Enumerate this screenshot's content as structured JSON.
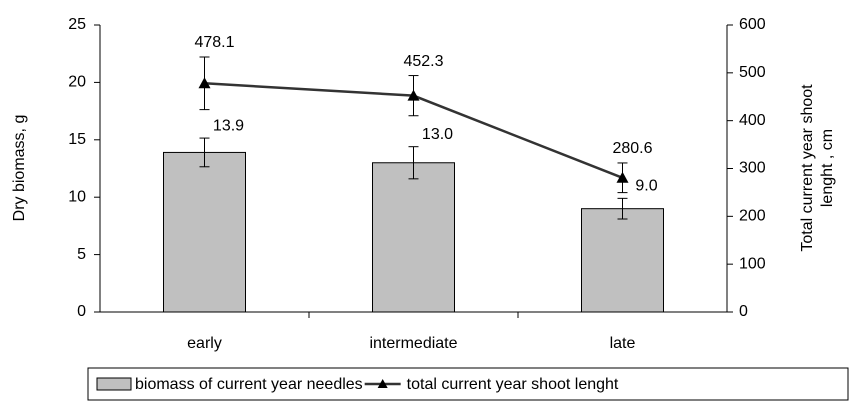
{
  "chart_data": {
    "type": "bar-line",
    "categories": [
      "early",
      "intermediate",
      "late"
    ],
    "ylabel": "Dry biomass, g",
    "y2label": [
      "Total current year shoot",
      "lenght , cm"
    ],
    "ylim": [
      0,
      25
    ],
    "yticks": [
      0,
      5,
      10,
      15,
      20,
      25
    ],
    "y2lim": [
      0,
      600
    ],
    "y2ticks": [
      0,
      100,
      200,
      300,
      400,
      500,
      600
    ],
    "series": [
      {
        "name": "biomass of current year needles",
        "type": "bar",
        "color": "#c0c0c0",
        "values": [
          13.9,
          13.0,
          9.0
        ],
        "value_labels": [
          "13.9",
          "13.0",
          "9.0"
        ],
        "errors": [
          1.25,
          1.4,
          0.9
        ]
      },
      {
        "name": "total current year shoot lenght",
        "type": "line",
        "axis": "y2",
        "color": "#333333",
        "values": [
          478.1,
          452.3,
          280.6
        ],
        "errors": [
          55,
          42,
          31
        ]
      }
    ]
  }
}
